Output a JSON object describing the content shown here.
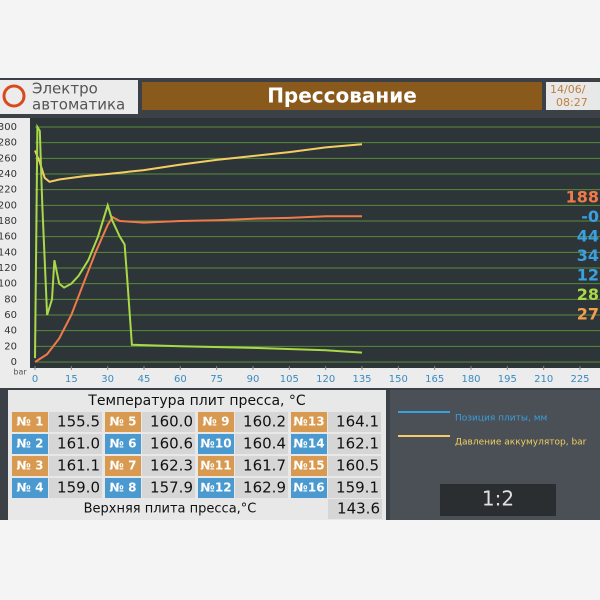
{
  "header": {
    "logo_line1": "Электро",
    "logo_line2": "автоматика",
    "title": "Прессование",
    "date": "14/06/",
    "time": "08:27"
  },
  "chart_data": {
    "type": "line",
    "y_unit": "bar",
    "xlim": [
      0,
      225
    ],
    "xticks": [
      0,
      15,
      30,
      45,
      60,
      75,
      90,
      105,
      120,
      135,
      150,
      165,
      180,
      195,
      210,
      225
    ],
    "ylim": [
      0,
      300
    ],
    "yticks": [
      0,
      20,
      40,
      60,
      80,
      100,
      120,
      140,
      160,
      180,
      200,
      220,
      240,
      260,
      280,
      300
    ],
    "grid": true,
    "series": [
      {
        "color": "#f2cf62",
        "x": [
          0,
          2,
          4,
          6,
          10,
          20,
          30,
          45,
          60,
          75,
          90,
          105,
          120,
          135
        ],
        "values": [
          270,
          255,
          235,
          230,
          233,
          237,
          240,
          245,
          252,
          258,
          263,
          268,
          274,
          278
        ]
      },
      {
        "color": "#f07a48",
        "x": [
          0,
          5,
          10,
          15,
          20,
          25,
          30,
          32,
          35,
          45,
          60,
          75,
          90,
          105,
          120,
          135
        ],
        "values": [
          0,
          10,
          30,
          60,
          100,
          140,
          175,
          185,
          180,
          178,
          180,
          181,
          183,
          184,
          186,
          186
        ]
      },
      {
        "color": "#a9d848",
        "x": [
          0,
          1,
          2,
          3,
          5,
          7,
          8,
          10,
          12,
          15,
          18,
          22,
          26,
          30,
          32,
          35,
          37,
          38,
          40,
          60,
          90,
          120,
          135
        ],
        "values": [
          5,
          300,
          295,
          200,
          60,
          80,
          130,
          100,
          95,
          100,
          110,
          130,
          160,
          200,
          180,
          160,
          150,
          110,
          22,
          20,
          18,
          15,
          12
        ]
      }
    ],
    "legend": [
      {
        "name": "Позиция плиты, мм",
        "color": "#3aa0e0"
      },
      {
        "name": "Давление аккумулятор, bar",
        "color": "#f2cf62"
      }
    ],
    "readouts": [
      {
        "text": "188",
        "color": "#f07a48"
      },
      {
        "text": "-0",
        "color": "#3aa0e0"
      },
      {
        "text": "44",
        "color": "#3aa0e0"
      },
      {
        "text": "34",
        "color": "#3aa0e0"
      },
      {
        "text": "12",
        "color": "#3aa0e0"
      },
      {
        "text": "28",
        "color": "#a9d848"
      },
      {
        "text": "27",
        "color": "#f2a050"
      }
    ]
  },
  "table": {
    "title": "Температура плит пресса, °C",
    "rows": [
      [
        [
          "№ 1",
          "155.5"
        ],
        [
          "№ 5",
          "160.0"
        ],
        [
          "№ 9",
          "160.2"
        ],
        [
          "№13",
          "164.1"
        ]
      ],
      [
        [
          "№ 2",
          "161.0"
        ],
        [
          "№ 6",
          "160.6"
        ],
        [
          "№10",
          "160.4"
        ],
        [
          "№14",
          "162.1"
        ]
      ],
      [
        [
          "№ 3",
          "161.1"
        ],
        [
          "№ 7",
          "162.3"
        ],
        [
          "№11",
          "161.7"
        ],
        [
          "№15",
          "160.5"
        ]
      ],
      [
        [
          "№ 4",
          "159.0"
        ],
        [
          "№ 8",
          "157.9"
        ],
        [
          "№12",
          "162.9"
        ],
        [
          "№16",
          "159.1"
        ]
      ]
    ],
    "footer_label": "Верхняя плита пресса,°C",
    "footer_value": "143.6"
  },
  "ratio": "1:2"
}
